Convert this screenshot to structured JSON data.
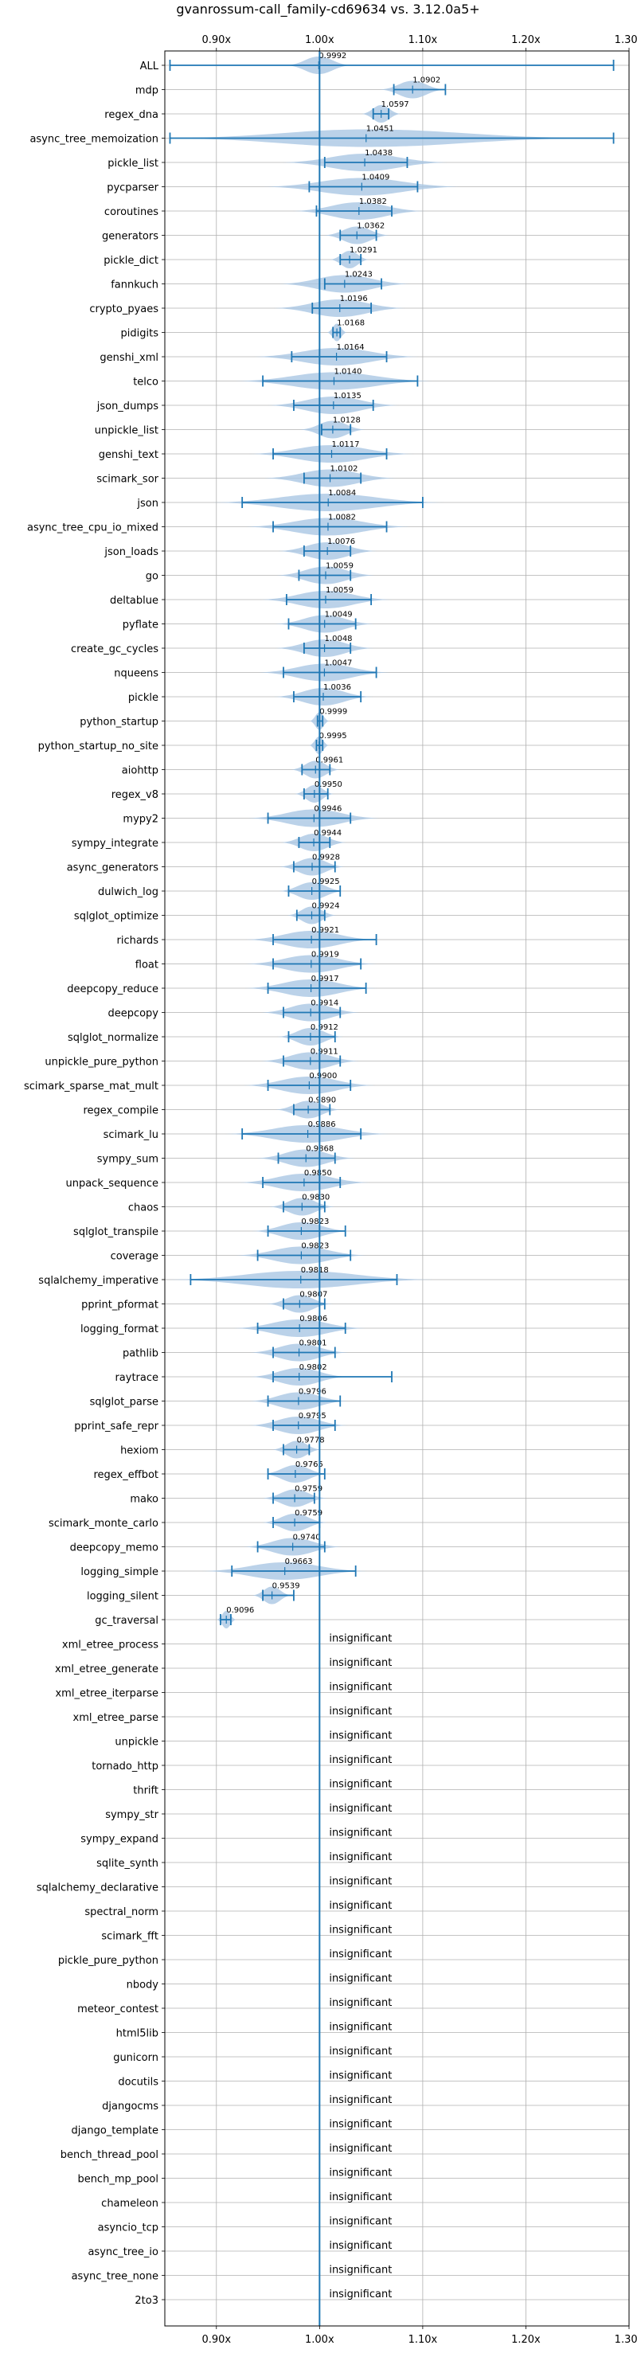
{
  "colors": {
    "accent": "#1f77b4",
    "violin": "#aac7e3",
    "grid": "#b0b0b0"
  },
  "chart_data": {
    "type": "violin",
    "title": "gvanrossum-call_family-cd69634 vs. 3.12.0a5+",
    "orientation": "horizontal",
    "xlim": [
      0.85,
      1.3
    ],
    "x_ticks": [
      0.9,
      1.0,
      1.1,
      1.2,
      1.3
    ],
    "x_tick_labels": [
      "0.90x",
      "1.00x",
      "1.10x",
      "1.20x",
      "1.30x"
    ],
    "reference_line": 1.0,
    "grid": true,
    "insignificant_label": "insignificant",
    "benchmarks": [
      {
        "name": "ALL",
        "value": "0.9992",
        "mean": 0.9992,
        "min": 0.855,
        "max": 1.285,
        "spread": 0.02
      },
      {
        "name": "mdp",
        "value": "1.0902",
        "mean": 1.0902,
        "min": 1.072,
        "max": 1.122,
        "spread": 0.02
      },
      {
        "name": "regex_dna",
        "value": "1.0597",
        "mean": 1.0597,
        "min": 1.052,
        "max": 1.067,
        "spread": 0.012
      },
      {
        "name": "async_tree_memoization",
        "value": "1.0451",
        "mean": 1.0451,
        "min": 0.855,
        "max": 1.285,
        "spread": 0.14
      },
      {
        "name": "pickle_list",
        "value": "1.0438",
        "mean": 1.0438,
        "min": 1.005,
        "max": 1.085,
        "spread": 0.05
      },
      {
        "name": "pycparser",
        "value": "1.0409",
        "mean": 1.0409,
        "min": 0.99,
        "max": 1.095,
        "spread": 0.06
      },
      {
        "name": "coroutines",
        "value": "1.0382",
        "mean": 1.0382,
        "min": 0.997,
        "max": 1.07,
        "spread": 0.04
      },
      {
        "name": "generators",
        "value": "1.0362",
        "mean": 1.0362,
        "min": 1.02,
        "max": 1.055,
        "spread": 0.02
      },
      {
        "name": "pickle_dict",
        "value": "1.0291",
        "mean": 1.0291,
        "min": 1.02,
        "max": 1.04,
        "spread": 0.012
      },
      {
        "name": "fannkuch",
        "value": "1.0243",
        "mean": 1.0243,
        "min": 1.005,
        "max": 1.06,
        "spread": 0.04
      },
      {
        "name": "crypto_pyaes",
        "value": "1.0196",
        "mean": 1.0196,
        "min": 0.993,
        "max": 1.05,
        "spread": 0.04
      },
      {
        "name": "pidigits",
        "value": "1.0168",
        "mean": 1.0168,
        "min": 1.013,
        "max": 1.02,
        "spread": 0.006
      },
      {
        "name": "genshi_xml",
        "value": "1.0164",
        "mean": 1.0164,
        "min": 0.973,
        "max": 1.065,
        "spread": 0.05
      },
      {
        "name": "telco",
        "value": "1.0140",
        "mean": 1.014,
        "min": 0.945,
        "max": 1.095,
        "spread": 0.06
      },
      {
        "name": "json_dumps",
        "value": "1.0135",
        "mean": 1.0135,
        "min": 0.975,
        "max": 1.052,
        "spread": 0.04
      },
      {
        "name": "unpickle_list",
        "value": "1.0128",
        "mean": 1.0128,
        "min": 1.002,
        "max": 1.03,
        "spread": 0.02
      },
      {
        "name": "genshi_text",
        "value": "1.0117",
        "mean": 1.0117,
        "min": 0.955,
        "max": 1.065,
        "spread": 0.05
      },
      {
        "name": "scimark_sor",
        "value": "1.0102",
        "mean": 1.0102,
        "min": 0.985,
        "max": 1.04,
        "spread": 0.04
      },
      {
        "name": "json",
        "value": "1.0084",
        "mean": 1.0084,
        "min": 0.925,
        "max": 1.1,
        "spread": 0.07
      },
      {
        "name": "async_tree_cpu_io_mixed",
        "value": "1.0082",
        "mean": 1.0082,
        "min": 0.955,
        "max": 1.065,
        "spread": 0.05
      },
      {
        "name": "json_loads",
        "value": "1.0076",
        "mean": 1.0076,
        "min": 0.985,
        "max": 1.03,
        "spread": 0.03
      },
      {
        "name": "go",
        "value": "1.0059",
        "mean": 1.0059,
        "min": 0.98,
        "max": 1.03,
        "spread": 0.03
      },
      {
        "name": "deltablue",
        "value": "1.0059",
        "mean": 1.0059,
        "min": 0.968,
        "max": 1.05,
        "spread": 0.04
      },
      {
        "name": "pyflate",
        "value": "1.0049",
        "mean": 1.0049,
        "min": 0.97,
        "max": 1.035,
        "spread": 0.03
      },
      {
        "name": "create_gc_cycles",
        "value": "1.0048",
        "mean": 1.0048,
        "min": 0.985,
        "max": 1.03,
        "spread": 0.03
      },
      {
        "name": "nqueens",
        "value": "1.0047",
        "mean": 1.0047,
        "min": 0.965,
        "max": 1.055,
        "spread": 0.04
      },
      {
        "name": "pickle",
        "value": "1.0036",
        "mean": 1.0036,
        "min": 0.975,
        "max": 1.04,
        "spread": 0.03
      },
      {
        "name": "python_startup",
        "value": "0.9999",
        "mean": 0.9999,
        "min": 0.998,
        "max": 1.003,
        "spread": 0.006
      },
      {
        "name": "python_startup_no_site",
        "value": "0.9995",
        "mean": 0.9995,
        "min": 0.997,
        "max": 1.003,
        "spread": 0.006
      },
      {
        "name": "aiohttp",
        "value": "0.9961",
        "mean": 0.9961,
        "min": 0.983,
        "max": 1.01,
        "spread": 0.015
      },
      {
        "name": "regex_v8",
        "value": "0.9950",
        "mean": 0.995,
        "min": 0.985,
        "max": 1.008,
        "spread": 0.012
      },
      {
        "name": "mypy2",
        "value": "0.9946",
        "mean": 0.9946,
        "min": 0.95,
        "max": 1.03,
        "spread": 0.04
      },
      {
        "name": "sympy_integrate",
        "value": "0.9944",
        "mean": 0.9944,
        "min": 0.98,
        "max": 1.01,
        "spread": 0.02
      },
      {
        "name": "async_generators",
        "value": "0.9928",
        "mean": 0.9928,
        "min": 0.975,
        "max": 1.015,
        "spread": 0.02
      },
      {
        "name": "dulwich_log",
        "value": "0.9925",
        "mean": 0.9925,
        "min": 0.97,
        "max": 1.02,
        "spread": 0.02
      },
      {
        "name": "sqlglot_optimize",
        "value": "0.9924",
        "mean": 0.9924,
        "min": 0.978,
        "max": 1.005,
        "spread": 0.015
      },
      {
        "name": "richards",
        "value": "0.9921",
        "mean": 0.9921,
        "min": 0.955,
        "max": 1.055,
        "spread": 0.04
      },
      {
        "name": "float",
        "value": "0.9919",
        "mean": 0.9919,
        "min": 0.955,
        "max": 1.04,
        "spread": 0.04
      },
      {
        "name": "deepcopy_reduce",
        "value": "0.9917",
        "mean": 0.9917,
        "min": 0.95,
        "max": 1.045,
        "spread": 0.04
      },
      {
        "name": "deepcopy",
        "value": "0.9914",
        "mean": 0.9914,
        "min": 0.965,
        "max": 1.02,
        "spread": 0.03
      },
      {
        "name": "sqlglot_normalize",
        "value": "0.9912",
        "mean": 0.9912,
        "min": 0.97,
        "max": 1.015,
        "spread": 0.02
      },
      {
        "name": "unpickle_pure_python",
        "value": "0.9911",
        "mean": 0.9911,
        "min": 0.965,
        "max": 1.02,
        "spread": 0.03
      },
      {
        "name": "scimark_sparse_mat_mult",
        "value": "0.9900",
        "mean": 0.99,
        "min": 0.95,
        "max": 1.03,
        "spread": 0.04
      },
      {
        "name": "regex_compile",
        "value": "0.9890",
        "mean": 0.989,
        "min": 0.975,
        "max": 1.01,
        "spread": 0.02
      },
      {
        "name": "scimark_lu",
        "value": "0.9886",
        "mean": 0.9886,
        "min": 0.925,
        "max": 1.04,
        "spread": 0.05
      },
      {
        "name": "sympy_sum",
        "value": "0.9868",
        "mean": 0.9868,
        "min": 0.96,
        "max": 1.015,
        "spread": 0.03
      },
      {
        "name": "unpack_sequence",
        "value": "0.9850",
        "mean": 0.985,
        "min": 0.945,
        "max": 1.02,
        "spread": 0.04
      },
      {
        "name": "chaos",
        "value": "0.9830",
        "mean": 0.983,
        "min": 0.965,
        "max": 1.005,
        "spread": 0.02
      },
      {
        "name": "sqlglot_transpile",
        "value": "0.9823",
        "mean": 0.9823,
        "min": 0.95,
        "max": 1.025,
        "spread": 0.03
      },
      {
        "name": "coverage",
        "value": "0.9823",
        "mean": 0.9823,
        "min": 0.94,
        "max": 1.03,
        "spread": 0.04
      },
      {
        "name": "sqlalchemy_imperative",
        "value": "0.9818",
        "mean": 0.9818,
        "min": 0.875,
        "max": 1.075,
        "spread": 0.08
      },
      {
        "name": "pprint_pformat",
        "value": "0.9807",
        "mean": 0.9807,
        "min": 0.965,
        "max": 1.005,
        "spread": 0.02
      },
      {
        "name": "logging_format",
        "value": "0.9806",
        "mean": 0.9806,
        "min": 0.94,
        "max": 1.025,
        "spread": 0.04
      },
      {
        "name": "pathlib",
        "value": "0.9801",
        "mean": 0.9801,
        "min": 0.955,
        "max": 1.015,
        "spread": 0.03
      },
      {
        "name": "raytrace",
        "value": "0.9802",
        "mean": 0.9802,
        "min": 0.955,
        "max": 1.07,
        "spread": 0.03
      },
      {
        "name": "sqlglot_parse",
        "value": "0.9796",
        "mean": 0.9796,
        "min": 0.95,
        "max": 1.02,
        "spread": 0.03
      },
      {
        "name": "pprint_safe_repr",
        "value": "0.9795",
        "mean": 0.9795,
        "min": 0.955,
        "max": 1.015,
        "spread": 0.03
      },
      {
        "name": "hexiom",
        "value": "0.9778",
        "mean": 0.9778,
        "min": 0.965,
        "max": 0.99,
        "spread": 0.015
      },
      {
        "name": "regex_effbot",
        "value": "0.9765",
        "mean": 0.9765,
        "min": 0.95,
        "max": 1.005,
        "spread": 0.02
      },
      {
        "name": "mako",
        "value": "0.9759",
        "mean": 0.9759,
        "min": 0.955,
        "max": 0.995,
        "spread": 0.02
      },
      {
        "name": "scimark_monte_carlo",
        "value": "0.9759",
        "mean": 0.9759,
        "min": 0.955,
        "max": 1.0,
        "spread": 0.02
      },
      {
        "name": "deepcopy_memo",
        "value": "0.9740",
        "mean": 0.974,
        "min": 0.94,
        "max": 1.005,
        "spread": 0.03
      },
      {
        "name": "logging_simple",
        "value": "0.9663",
        "mean": 0.9663,
        "min": 0.915,
        "max": 1.035,
        "spread": 0.05
      },
      {
        "name": "logging_silent",
        "value": "0.9539",
        "mean": 0.9539,
        "min": 0.945,
        "max": 0.975,
        "spread": 0.012
      },
      {
        "name": "gc_traversal",
        "value": "0.9096",
        "mean": 0.9096,
        "min": 0.904,
        "max": 0.914,
        "spread": 0.006
      },
      {
        "name": "xml_etree_process",
        "value": "insignificant"
      },
      {
        "name": "xml_etree_generate",
        "value": "insignificant"
      },
      {
        "name": "xml_etree_iterparse",
        "value": "insignificant"
      },
      {
        "name": "xml_etree_parse",
        "value": "insignificant"
      },
      {
        "name": "unpickle",
        "value": "insignificant"
      },
      {
        "name": "tornado_http",
        "value": "insignificant"
      },
      {
        "name": "thrift",
        "value": "insignificant"
      },
      {
        "name": "sympy_str",
        "value": "insignificant"
      },
      {
        "name": "sympy_expand",
        "value": "insignificant"
      },
      {
        "name": "sqlite_synth",
        "value": "insignificant"
      },
      {
        "name": "sqlalchemy_declarative",
        "value": "insignificant"
      },
      {
        "name": "spectral_norm",
        "value": "insignificant"
      },
      {
        "name": "scimark_fft",
        "value": "insignificant"
      },
      {
        "name": "pickle_pure_python",
        "value": "insignificant"
      },
      {
        "name": "nbody",
        "value": "insignificant"
      },
      {
        "name": "meteor_contest",
        "value": "insignificant"
      },
      {
        "name": "html5lib",
        "value": "insignificant"
      },
      {
        "name": "gunicorn",
        "value": "insignificant"
      },
      {
        "name": "docutils",
        "value": "insignificant"
      },
      {
        "name": "djangocms",
        "value": "insignificant"
      },
      {
        "name": "django_template",
        "value": "insignificant"
      },
      {
        "name": "bench_thread_pool",
        "value": "insignificant"
      },
      {
        "name": "bench_mp_pool",
        "value": "insignificant"
      },
      {
        "name": "chameleon",
        "value": "insignificant"
      },
      {
        "name": "asyncio_tcp",
        "value": "insignificant"
      },
      {
        "name": "async_tree_io",
        "value": "insignificant"
      },
      {
        "name": "async_tree_none",
        "value": "insignificant"
      },
      {
        "name": "2to3",
        "value": "insignificant"
      }
    ]
  }
}
